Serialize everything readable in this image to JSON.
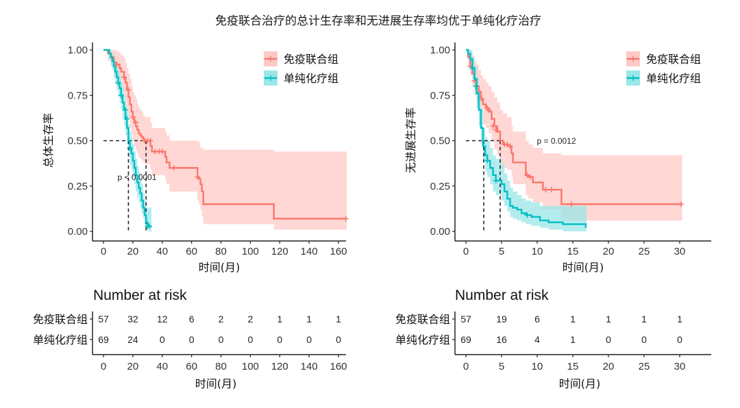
{
  "title": "免疫联合治疗的总计生存率和无进展生存率均优于单纯化疗治疗",
  "colors": {
    "immuno": "#F8766D",
    "immuno_ci": "#FFC9C6",
    "chemo": "#00BFC4",
    "chemo_ci": "#9BE6E8",
    "axis": "#222222"
  },
  "chart_data": [
    {
      "type": "line",
      "subtype": "kaplan-meier",
      "id": "os",
      "title": "",
      "xlabel": "时间(月)",
      "ylabel": "总体生存率",
      "xlim": [
        0,
        165
      ],
      "ylim": [
        0,
        1
      ],
      "xticks": [
        0,
        20,
        40,
        60,
        80,
        100,
        120,
        140,
        160
      ],
      "yticks": [
        "0.00",
        "0.25",
        "0.50",
        "0.75",
        "1.00"
      ],
      "legend": {
        "position": "top-right",
        "entries": [
          "免疫联合组",
          "单纯化疗组"
        ]
      },
      "pvalue": "p < 0.0001",
      "median": {
        "immuno": 29,
        "chemo": 17
      },
      "series": [
        {
          "name": "免疫联合组",
          "key": "immuno",
          "x": [
            0,
            3,
            5,
            7,
            9,
            11,
            12,
            14,
            15,
            16,
            17,
            18,
            19,
            20,
            21,
            22,
            23,
            24,
            25,
            26,
            27,
            28,
            29,
            32,
            33,
            42,
            43,
            45,
            64,
            65,
            66,
            67,
            68,
            116,
            165
          ],
          "y": [
            1.0,
            0.98,
            0.96,
            0.93,
            0.92,
            0.9,
            0.88,
            0.85,
            0.82,
            0.78,
            0.74,
            0.7,
            0.66,
            0.63,
            0.6,
            0.58,
            0.56,
            0.54,
            0.53,
            0.52,
            0.51,
            0.5,
            0.5,
            0.47,
            0.44,
            0.41,
            0.38,
            0.35,
            0.3,
            0.29,
            0.26,
            0.22,
            0.15,
            0.07,
            0.07
          ],
          "ci_upper": [
            1.0,
            1.0,
            1.0,
            1.0,
            0.99,
            0.98,
            0.97,
            0.95,
            0.93,
            0.9,
            0.87,
            0.84,
            0.8,
            0.77,
            0.75,
            0.73,
            0.7,
            0.68,
            0.67,
            0.66,
            0.64,
            0.63,
            0.63,
            0.6,
            0.57,
            0.55,
            0.53,
            0.5,
            0.5,
            0.49,
            0.46,
            0.46,
            0.45,
            0.44,
            0.44
          ],
          "ci_lower": [
            1.0,
            0.94,
            0.91,
            0.86,
            0.84,
            0.81,
            0.78,
            0.74,
            0.7,
            0.66,
            0.62,
            0.57,
            0.53,
            0.5,
            0.47,
            0.45,
            0.43,
            0.41,
            0.4,
            0.39,
            0.38,
            0.37,
            0.37,
            0.34,
            0.31,
            0.28,
            0.26,
            0.22,
            0.17,
            0.15,
            0.12,
            0.08,
            0.04,
            0.01,
            0.01
          ],
          "censor_x": [
            9,
            14,
            17,
            20,
            22,
            28,
            30,
            32,
            35,
            38,
            40,
            48,
            64,
            165
          ],
          "censor_y": [
            0.92,
            0.85,
            0.78,
            0.63,
            0.6,
            0.5,
            0.5,
            0.5,
            0.44,
            0.44,
            0.44,
            0.35,
            0.3,
            0.07
          ]
        },
        {
          "name": "单纯化疗组",
          "key": "chemo",
          "x": [
            0,
            2,
            4,
            5,
            6,
            7,
            8,
            9,
            10,
            11,
            12,
            13,
            14,
            15,
            16,
            17,
            18,
            19,
            20,
            21,
            22,
            23,
            24,
            25,
            26,
            27,
            28,
            29,
            30,
            31,
            32
          ],
          "y": [
            1.0,
            1.0,
            0.98,
            0.96,
            0.94,
            0.91,
            0.88,
            0.85,
            0.82,
            0.79,
            0.75,
            0.71,
            0.67,
            0.62,
            0.57,
            0.5,
            0.46,
            0.43,
            0.39,
            0.35,
            0.31,
            0.27,
            0.24,
            0.21,
            0.17,
            0.13,
            0.09,
            0.05,
            0.03,
            0.03,
            0.02
          ],
          "ci_upper": [
            1.0,
            1.0,
            1.0,
            0.99,
            0.98,
            0.96,
            0.94,
            0.91,
            0.89,
            0.86,
            0.82,
            0.79,
            0.75,
            0.7,
            0.66,
            0.59,
            0.55,
            0.52,
            0.48,
            0.44,
            0.4,
            0.36,
            0.33,
            0.3,
            0.26,
            0.21,
            0.17,
            0.13,
            0.13,
            0.13,
            0.13
          ],
          "ci_lower": [
            1.0,
            1.0,
            0.95,
            0.92,
            0.89,
            0.85,
            0.81,
            0.78,
            0.74,
            0.71,
            0.67,
            0.62,
            0.58,
            0.53,
            0.48,
            0.41,
            0.37,
            0.34,
            0.3,
            0.26,
            0.22,
            0.19,
            0.16,
            0.13,
            0.1,
            0.07,
            0.04,
            0.01,
            0.0,
            0.0,
            0.0
          ],
          "censor_x": [
            10,
            12,
            15,
            16,
            18,
            30,
            31
          ],
          "censor_y": [
            0.82,
            0.75,
            0.67,
            0.62,
            0.46,
            0.03,
            0.03
          ]
        }
      ],
      "risk_table": {
        "title": "Number at risk",
        "xlabel": "时间(月)",
        "times": [
          0,
          20,
          40,
          60,
          80,
          100,
          120,
          140,
          160
        ],
        "rows": [
          {
            "group": "免疫联合组",
            "values": [
              57,
              32,
              12,
              6,
              2,
              2,
              1,
              1,
              1
            ]
          },
          {
            "group": "单纯化疗组",
            "values": [
              69,
              24,
              0,
              0,
              0,
              0,
              0,
              0,
              0
            ]
          }
        ]
      }
    },
    {
      "type": "line",
      "subtype": "kaplan-meier",
      "id": "pfs",
      "title": "",
      "xlabel": "时间(月)",
      "ylabel": "无进展生存率",
      "xlim": [
        0,
        30.5
      ],
      "ylim": [
        0,
        1
      ],
      "xticks": [
        0,
        5,
        10,
        15,
        20,
        25,
        30
      ],
      "yticks": [
        "0.00",
        "0.25",
        "0.50",
        "0.75",
        "1.00"
      ],
      "legend": {
        "position": "top-right",
        "entries": [
          "免疫联合组",
          "单纯化疗组"
        ]
      },
      "pvalue": "p = 0.0012",
      "median": {
        "immuno": 4.8,
        "chemo": 2.5
      },
      "series": [
        {
          "name": "免疫联合组",
          "key": "immuno",
          "x": [
            0,
            0.3,
            0.6,
            0.9,
            1.2,
            1.5,
            1.8,
            2.1,
            2.4,
            2.8,
            3.2,
            3.6,
            4.0,
            4.4,
            4.8,
            5.2,
            5.8,
            6.4,
            6.6,
            8.4,
            8.8,
            9.4,
            10.8,
            13.4,
            30.2
          ],
          "y": [
            1.0,
            0.96,
            0.91,
            0.87,
            0.83,
            0.8,
            0.77,
            0.73,
            0.7,
            0.68,
            0.66,
            0.62,
            0.58,
            0.55,
            0.5,
            0.48,
            0.47,
            0.43,
            0.38,
            0.31,
            0.3,
            0.27,
            0.23,
            0.15,
            0.15
          ],
          "ci_upper": [
            1.0,
            1.0,
            0.99,
            0.97,
            0.94,
            0.92,
            0.89,
            0.86,
            0.84,
            0.82,
            0.8,
            0.77,
            0.74,
            0.71,
            0.67,
            0.65,
            0.63,
            0.58,
            0.55,
            0.5,
            0.48,
            0.46,
            0.43,
            0.42,
            0.42
          ],
          "ci_lower": [
            1.0,
            0.92,
            0.86,
            0.8,
            0.75,
            0.71,
            0.67,
            0.63,
            0.59,
            0.57,
            0.54,
            0.5,
            0.45,
            0.42,
            0.37,
            0.35,
            0.34,
            0.3,
            0.26,
            0.2,
            0.18,
            0.16,
            0.12,
            0.06,
            0.06
          ],
          "censor_x": [
            0.6,
            1.2,
            1.4,
            2.2,
            3.0,
            3.2,
            3.8,
            4.2,
            5.4,
            5.8,
            6.2,
            8.6,
            9.0,
            11.2,
            12.0,
            14.8,
            30.2
          ],
          "censor_y": [
            0.91,
            0.83,
            0.8,
            0.73,
            0.68,
            0.67,
            0.58,
            0.56,
            0.48,
            0.48,
            0.47,
            0.31,
            0.3,
            0.23,
            0.23,
            0.15,
            0.15
          ]
        },
        {
          "name": "单纯化疗组",
          "key": "chemo",
          "x": [
            0,
            0.3,
            0.6,
            0.9,
            1.2,
            1.5,
            1.8,
            2.1,
            2.4,
            2.7,
            3.0,
            3.4,
            3.8,
            4.2,
            4.6,
            5.0,
            5.4,
            5.8,
            6.2,
            6.6,
            7.2,
            7.8,
            8.4,
            9.2,
            10.4,
            11.6,
            13.6,
            16.8
          ],
          "y": [
            1.0,
            0.98,
            0.95,
            0.9,
            0.84,
            0.76,
            0.67,
            0.57,
            0.47,
            0.42,
            0.39,
            0.35,
            0.31,
            0.28,
            0.28,
            0.26,
            0.22,
            0.18,
            0.14,
            0.13,
            0.12,
            0.1,
            0.09,
            0.08,
            0.06,
            0.05,
            0.04,
            0.02
          ],
          "ci_upper": [
            1.0,
            1.0,
            1.0,
            0.96,
            0.91,
            0.85,
            0.76,
            0.67,
            0.57,
            0.52,
            0.5,
            0.46,
            0.42,
            0.4,
            0.4,
            0.37,
            0.32,
            0.28,
            0.24,
            0.22,
            0.2,
            0.18,
            0.17,
            0.16,
            0.14,
            0.14,
            0.14,
            0.14
          ],
          "ci_lower": [
            1.0,
            0.95,
            0.9,
            0.84,
            0.77,
            0.68,
            0.58,
            0.48,
            0.39,
            0.33,
            0.3,
            0.26,
            0.22,
            0.2,
            0.2,
            0.17,
            0.14,
            0.11,
            0.08,
            0.07,
            0.06,
            0.05,
            0.04,
            0.03,
            0.02,
            0.01,
            0.0,
            0.0
          ],
          "censor_x": [
            0.9,
            1.4,
            3.0,
            4.2,
            8.6
          ],
          "censor_y": [
            0.9,
            0.8,
            0.39,
            0.28,
            0.09
          ]
        }
      ],
      "risk_table": {
        "title": "Number at risk",
        "xlabel": "时间(月)",
        "times": [
          0,
          5,
          10,
          15,
          20,
          25,
          30
        ],
        "rows": [
          {
            "group": "免疫联合组",
            "values": [
              57,
              19,
              6,
              1,
              1,
              1,
              1
            ]
          },
          {
            "group": "单纯化疗组",
            "values": [
              69,
              16,
              4,
              1,
              0,
              0,
              0
            ]
          }
        ]
      }
    }
  ]
}
